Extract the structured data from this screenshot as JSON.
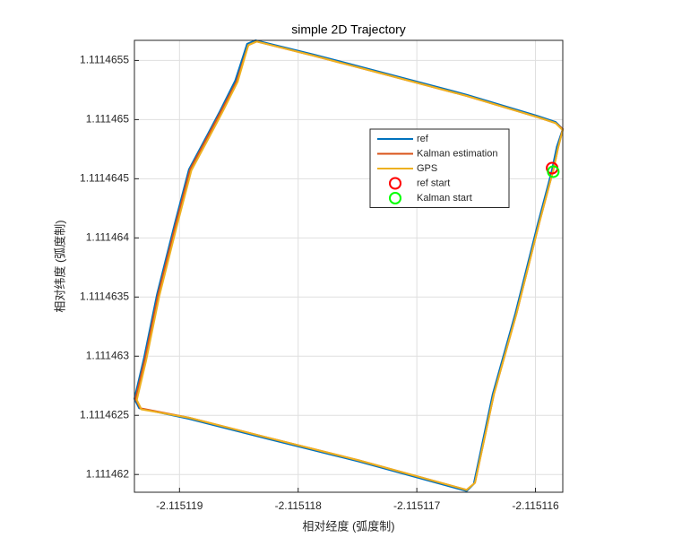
{
  "chart_data": {
    "type": "line",
    "title": "simple 2D Trajectory",
    "xlabel": "相对经度 (弧度制)",
    "ylabel": "相对纬度 (弧度制)",
    "xlim": [
      -2.11511938,
      -2.11511577
    ],
    "ylim": [
      1.11146185,
      1.11146567
    ],
    "xticks": [
      -2.115119,
      -2.115118,
      -2.115117,
      -2.115116
    ],
    "yticks": [
      1.111462,
      1.1114625,
      1.111463,
      1.1114635,
      1.111464,
      1.1114645,
      1.111465,
      1.1114655
    ],
    "grid": true,
    "legend": "east",
    "series": [
      {
        "name": "ref",
        "color": "#0072bd",
        "x": [
          -2.11511586,
          -2.11511582,
          -2.11511577,
          -2.11511583,
          -2.11511598,
          -2.11511658,
          -2.11511726,
          -2.11511787,
          -2.11511836,
          -2.11511843,
          -2.11511853,
          -2.11511866,
          -2.11511876,
          -2.11511892,
          -2.11511904,
          -2.11511919,
          -2.1151193,
          -2.11511938,
          -2.11511934,
          -2.11511892,
          -2.11511825,
          -2.11511749,
          -2.11511658,
          -2.11511652,
          -2.11511636,
          -2.11511617,
          -2.11511598,
          -2.11511589,
          -2.11511586
        ],
        "y": [
          1.11146458,
          1.11146477,
          1.11146492,
          1.11146498,
          1.11146503,
          1.11146521,
          1.11146539,
          1.11146555,
          1.11146567,
          1.11146564,
          1.11146533,
          1.11146507,
          1.11146488,
          1.11146458,
          1.11146412,
          1.11146352,
          1.11146298,
          1.11146264,
          1.11146256,
          1.11146247,
          1.1114623,
          1.11146211,
          1.11146186,
          1.11146192,
          1.11146268,
          1.11146336,
          1.11146412,
          1.11146446,
          1.11146458
        ]
      },
      {
        "name": "Kalman estimation",
        "color": "#d95319",
        "x": [
          -2.11511585,
          -2.11511581,
          -2.11511577,
          -2.11511583,
          -2.11511598,
          -2.11511658,
          -2.11511726,
          -2.11511787,
          -2.11511835,
          -2.11511842,
          -2.11511852,
          -2.11511865,
          -2.11511875,
          -2.11511891,
          -2.11511903,
          -2.11511918,
          -2.11511929,
          -2.11511937,
          -2.11511933,
          -2.11511892,
          -2.11511825,
          -2.11511749,
          -2.11511658,
          -2.11511651,
          -2.11511635,
          -2.11511616,
          -2.11511597,
          -2.11511588,
          -2.11511585
        ],
        "y": [
          1.11146457,
          1.11146476,
          1.11146492,
          1.11146497,
          1.11146502,
          1.1114652,
          1.11146538,
          1.11146554,
          1.11146566,
          1.11146563,
          1.11146532,
          1.11146507,
          1.11146488,
          1.11146458,
          1.11146412,
          1.11146352,
          1.11146298,
          1.11146264,
          1.11146256,
          1.11146248,
          1.11146231,
          1.11146212,
          1.11146187,
          1.11146193,
          1.11146268,
          1.11146336,
          1.11146412,
          1.11146446,
          1.11146457
        ]
      },
      {
        "name": "GPS",
        "color": "#edb120",
        "x": [
          -2.11511585,
          -2.11511581,
          -2.11511577,
          -2.11511583,
          -2.11511598,
          -2.11511658,
          -2.11511726,
          -2.11511787,
          -2.11511835,
          -2.11511842,
          -2.11511851,
          -2.11511864,
          -2.11511874,
          -2.1151189,
          -2.11511902,
          -2.11511917,
          -2.11511928,
          -2.11511936,
          -2.11511932,
          -2.11511892,
          -2.11511825,
          -2.11511749,
          -2.11511658,
          -2.11511651,
          -2.11511635,
          -2.11511616,
          -2.11511597,
          -2.11511588,
          -2.11511585
        ],
        "y": [
          1.11146457,
          1.11146476,
          1.11146491,
          1.11146497,
          1.11146502,
          1.1114652,
          1.11146538,
          1.11146554,
          1.11146566,
          1.11146563,
          1.11146532,
          1.11146506,
          1.11146487,
          1.11146457,
          1.11146411,
          1.11146351,
          1.11146297,
          1.11146263,
          1.11146255,
          1.11146248,
          1.11146231,
          1.11146212,
          1.11146187,
          1.11146193,
          1.11146268,
          1.11146336,
          1.11146412,
          1.11146446,
          1.11146457
        ]
      },
      {
        "name": "ref start",
        "color": "#ff0000",
        "marker": "o",
        "x": [
          -2.11511586
        ],
        "y": [
          1.11146459
        ]
      },
      {
        "name": "Kalman start",
        "color": "#00ff00",
        "marker": "o",
        "x": [
          -2.11511585
        ],
        "y": [
          1.11146456
        ]
      }
    ]
  }
}
